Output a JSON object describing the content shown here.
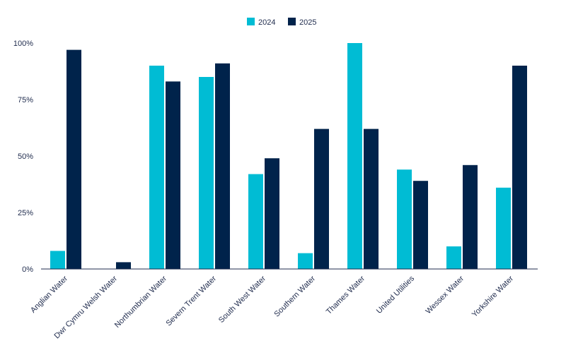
{
  "chart_data": {
    "type": "bar",
    "categories": [
      "Anglian Water",
      "Dwr Cymru Welsh Water",
      "Northumbrian Water",
      "Severn Trent Water",
      "South West Water",
      "Southern Water",
      "Thames Water",
      "United Utilities",
      "Wessex Water",
      "Yorkshire Water"
    ],
    "series": [
      {
        "name": "2024",
        "color": "#00bcd4",
        "values": [
          8,
          0,
          90,
          85,
          42,
          7,
          100,
          44,
          10,
          36
        ]
      },
      {
        "name": "2025",
        "color": "#00234b",
        "values": [
          97,
          3,
          83,
          91,
          49,
          62,
          62,
          39,
          46,
          90
        ]
      }
    ],
    "yticks": [
      "0%",
      "25%",
      "50%",
      "75%",
      "100%"
    ],
    "ylim": [
      0,
      100
    ],
    "grid": false,
    "legend_position": "top-center"
  }
}
